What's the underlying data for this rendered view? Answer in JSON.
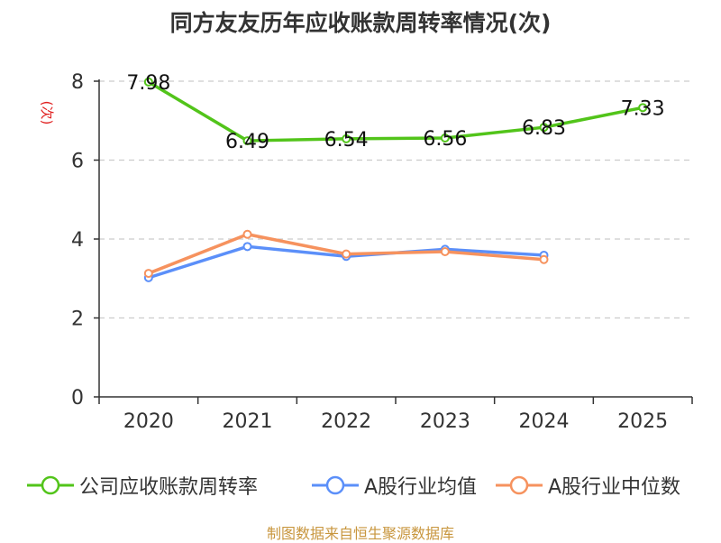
{
  "chart_data": {
    "type": "line",
    "title": "同方友友历年应收账款周转率情况(次)",
    "ylabel": "(次)",
    "xlabel": "",
    "categories": [
      "2020",
      "2021",
      "2022",
      "2023",
      "2024",
      "2025"
    ],
    "ylim": [
      0,
      8
    ],
    "yticks": [
      0,
      2,
      4,
      6,
      8
    ],
    "grid": true,
    "legend_position": "bottom",
    "series": [
      {
        "name": "公司应收账款周转率",
        "color": "#52c41a",
        "values": [
          7.98,
          6.49,
          6.54,
          6.56,
          6.83,
          7.33
        ],
        "show_labels": true
      },
      {
        "name": "A股行业均值",
        "color": "#5b8ff9",
        "values": [
          3.02,
          3.81,
          3.56,
          3.74,
          3.59,
          null
        ],
        "show_labels": false
      },
      {
        "name": "A股行业中位数",
        "color": "#f6925e",
        "values": [
          3.13,
          4.12,
          3.62,
          3.68,
          3.48,
          null
        ],
        "show_labels": false
      }
    ],
    "source": "制图数据来自恒生聚源数据库"
  }
}
